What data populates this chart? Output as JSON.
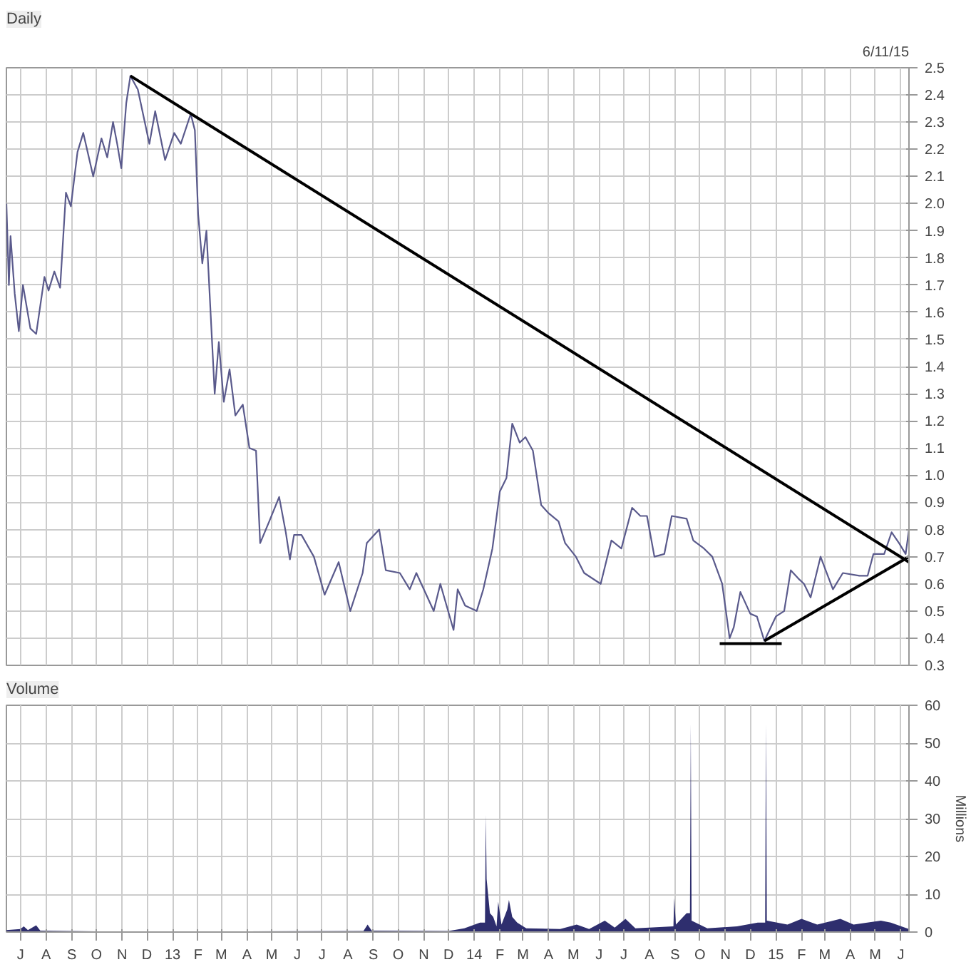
{
  "chart_data": [
    {
      "type": "line",
      "title": "Daily",
      "annotations": [
        "6/11/15"
      ],
      "grid": true,
      "tick_labels": "y",
      "xlim": [
        "2012-06-14",
        "2015-06-11"
      ],
      "xticks": [
        {
          "value": "2012-07-01",
          "label": null
        },
        {
          "value": "2012-08-01",
          "label": null
        },
        {
          "value": "2012-09-01",
          "label": null
        },
        {
          "value": "2012-10-01",
          "label": null
        },
        {
          "value": "2012-11-01",
          "label": null
        },
        {
          "value": "2012-12-01",
          "label": null
        },
        {
          "value": "2013-01-01",
          "label": null
        },
        {
          "value": "2013-02-01",
          "label": null
        },
        {
          "value": "2013-03-01",
          "label": null
        },
        {
          "value": "2013-04-01",
          "label": null
        },
        {
          "value": "2013-05-01",
          "label": null
        },
        {
          "value": "2013-06-01",
          "label": null
        },
        {
          "value": "2013-07-01",
          "label": null
        },
        {
          "value": "2013-08-01",
          "label": null
        },
        {
          "value": "2013-09-01",
          "label": null
        },
        {
          "value": "2013-10-01",
          "label": null
        },
        {
          "value": "2013-11-01",
          "label": null
        },
        {
          "value": "2013-12-01",
          "label": null
        },
        {
          "value": "2014-01-01",
          "label": null
        },
        {
          "value": "2014-02-01",
          "label": null
        },
        {
          "value": "2014-03-01",
          "label": null
        },
        {
          "value": "2014-04-01",
          "label": null
        },
        {
          "value": "2014-05-01",
          "label": null
        },
        {
          "value": "2014-06-01",
          "label": null
        },
        {
          "value": "2014-07-01",
          "label": null
        },
        {
          "value": "2014-08-01",
          "label": null
        },
        {
          "value": "2014-09-01",
          "label": null
        },
        {
          "value": "2014-10-01",
          "label": null
        },
        {
          "value": "2014-11-01",
          "label": null
        },
        {
          "value": "2014-12-01",
          "label": null
        },
        {
          "value": "2015-01-01",
          "label": null
        },
        {
          "value": "2015-02-01",
          "label": null
        },
        {
          "value": "2015-03-01",
          "label": null
        },
        {
          "value": "2015-04-01",
          "label": null
        },
        {
          "value": "2015-05-01",
          "label": null
        },
        {
          "value": "2015-06-01",
          "label": null
        }
      ],
      "ylim": [
        0.3,
        2.5
      ],
      "yticks": [
        {
          "value": 0.3,
          "label": "0.3"
        },
        {
          "value": 0.4,
          "label": "0.4"
        },
        {
          "value": 0.5,
          "label": "0.5"
        },
        {
          "value": 0.6,
          "label": "0.6"
        },
        {
          "value": 0.7,
          "label": "0.7"
        },
        {
          "value": 0.8,
          "label": "0.8"
        },
        {
          "value": 0.9,
          "label": "0.9"
        },
        {
          "value": 1.0,
          "label": "1.0"
        },
        {
          "value": 1.1,
          "label": "1.1"
        },
        {
          "value": 1.2,
          "label": "1.2"
        },
        {
          "value": 1.3,
          "label": "1.3"
        },
        {
          "value": 1.4,
          "label": "1.4"
        },
        {
          "value": 1.5,
          "label": "1.5"
        },
        {
          "value": 1.6,
          "label": "1.6"
        },
        {
          "value": 1.7,
          "label": "1.7"
        },
        {
          "value": 1.8,
          "label": "1.8"
        },
        {
          "value": 1.9,
          "label": "1.9"
        },
        {
          "value": 2.0,
          "label": "2.0"
        },
        {
          "value": 2.1,
          "label": "2.1"
        },
        {
          "value": 2.2,
          "label": "2.2"
        },
        {
          "value": 2.3,
          "label": "2.3"
        },
        {
          "value": 2.4,
          "label": "2.4"
        },
        {
          "value": 2.5,
          "label": "2.5"
        }
      ],
      "series": [
        {
          "color": "#5a5a8c",
          "x": [
            "2012-06-14",
            "2012-06-17",
            "2012-06-19",
            "2012-06-24",
            "2012-06-29",
            "2012-07-04",
            "2012-07-13",
            "2012-07-20",
            "2012-07-30",
            "2012-08-04",
            "2012-08-11",
            "2012-08-18",
            "2012-08-25",
            "2012-08-31",
            "2012-09-08",
            "2012-09-15",
            "2012-09-27",
            "2012-10-07",
            "2012-10-14",
            "2012-10-21",
            "2012-10-26",
            "2012-10-31",
            "2012-11-06",
            "2012-11-11",
            "2012-11-20",
            "2012-12-04",
            "2012-12-11",
            "2012-12-23",
            "2013-01-03",
            "2013-01-11",
            "2013-01-23",
            "2013-01-28",
            "2013-02-01",
            "2013-02-06",
            "2013-02-11",
            "2013-02-21",
            "2013-02-26",
            "2013-03-04",
            "2013-03-11",
            "2013-03-18",
            "2013-03-27",
            "2013-04-04",
            "2013-04-12",
            "2013-04-17",
            "2013-04-28",
            "2013-05-10",
            "2013-05-18",
            "2013-05-23",
            "2013-05-28",
            "2013-06-06",
            "2013-06-21",
            "2013-07-04",
            "2013-07-21",
            "2013-08-04",
            "2013-08-19",
            "2013-08-24",
            "2013-09-08",
            "2013-09-16",
            "2013-10-03",
            "2013-10-15",
            "2013-10-23",
            "2013-11-13",
            "2013-11-21",
            "2013-12-07",
            "2013-12-12",
            "2013-12-21",
            "2014-01-04",
            "2014-01-12",
            "2014-01-23",
            "2014-02-01",
            "2014-02-09",
            "2014-02-16",
            "2014-02-25",
            "2014-03-04",
            "2014-03-13",
            "2014-03-23",
            "2014-04-01",
            "2014-04-13",
            "2014-04-21",
            "2014-05-04",
            "2014-05-14",
            "2014-06-03",
            "2014-06-16",
            "2014-06-28",
            "2014-07-11",
            "2014-07-21",
            "2014-07-29",
            "2014-08-07",
            "2014-08-19",
            "2014-08-28",
            "2014-09-15",
            "2014-09-23",
            "2014-10-06",
            "2014-10-16",
            "2014-10-28",
            "2014-11-06",
            "2014-11-11",
            "2014-11-19",
            "2014-12-01",
            "2014-12-09",
            "2014-12-18",
            "2015-01-01",
            "2015-01-11",
            "2015-01-19",
            "2015-01-28",
            "2015-02-04",
            "2015-02-12",
            "2015-02-24",
            "2015-03-11",
            "2015-03-23",
            "2015-04-12",
            "2015-04-22",
            "2015-04-29",
            "2015-05-12",
            "2015-05-21",
            "2015-05-30",
            "2015-06-07",
            "2015-06-11"
          ],
          "values": [
            2.0,
            1.7,
            1.88,
            1.67,
            1.53,
            1.7,
            1.54,
            1.52,
            1.73,
            1.68,
            1.75,
            1.69,
            2.04,
            1.99,
            2.19,
            2.26,
            2.1,
            2.24,
            2.17,
            2.3,
            2.22,
            2.13,
            2.37,
            2.47,
            2.42,
            2.22,
            2.34,
            2.16,
            2.26,
            2.22,
            2.33,
            2.27,
            1.96,
            1.78,
            1.9,
            1.3,
            1.49,
            1.27,
            1.39,
            1.22,
            1.26,
            1.1,
            1.09,
            0.75,
            0.83,
            0.92,
            0.79,
            0.69,
            0.78,
            0.78,
            0.7,
            0.56,
            0.68,
            0.5,
            0.64,
            0.75,
            0.8,
            0.65,
            0.64,
            0.58,
            0.64,
            0.5,
            0.6,
            0.43,
            0.58,
            0.52,
            0.5,
            0.58,
            0.73,
            0.94,
            0.99,
            1.19,
            1.12,
            1.14,
            1.09,
            0.89,
            0.86,
            0.83,
            0.75,
            0.7,
            0.64,
            0.6,
            0.76,
            0.73,
            0.88,
            0.85,
            0.85,
            0.7,
            0.71,
            0.85,
            0.84,
            0.76,
            0.73,
            0.7,
            0.6,
            0.4,
            0.44,
            0.57,
            0.49,
            0.48,
            0.39,
            0.48,
            0.5,
            0.65,
            0.62,
            0.6,
            0.55,
            0.7,
            0.58,
            0.64,
            0.63,
            0.63,
            0.71,
            0.71,
            0.79,
            0.75,
            0.71,
            0.8
          ]
        },
        {
          "color": "#000000",
          "x": [
            "2012-11-11",
            "2015-06-11"
          ],
          "values": [
            2.47,
            0.68
          ]
        },
        {
          "color": "#000000",
          "x": [
            "2014-12-18",
            "2015-06-11"
          ],
          "values": [
            0.39,
            0.7
          ]
        },
        {
          "color": "#000000",
          "x": [
            "2014-10-25",
            "2015-01-08"
          ],
          "values": [
            0.38,
            0.38
          ]
        }
      ]
    },
    {
      "type": "area",
      "title": "Volume",
      "ylabel": "Millions",
      "grid": true,
      "xlim": [
        "2012-06-14",
        "2015-06-11"
      ],
      "xticks": [
        {
          "value": "2012-07-01",
          "label": "J"
        },
        {
          "value": "2012-08-01",
          "label": "A"
        },
        {
          "value": "2012-09-01",
          "label": "S"
        },
        {
          "value": "2012-10-01",
          "label": "O"
        },
        {
          "value": "2012-11-01",
          "label": "N"
        },
        {
          "value": "2012-12-01",
          "label": "D"
        },
        {
          "value": "2013-01-01",
          "label": "13"
        },
        {
          "value": "2013-02-01",
          "label": "F"
        },
        {
          "value": "2013-03-01",
          "label": "M"
        },
        {
          "value": "2013-04-01",
          "label": "A"
        },
        {
          "value": "2013-05-01",
          "label": "M"
        },
        {
          "value": "2013-06-01",
          "label": "J"
        },
        {
          "value": "2013-07-01",
          "label": "J"
        },
        {
          "value": "2013-08-01",
          "label": "A"
        },
        {
          "value": "2013-09-01",
          "label": "S"
        },
        {
          "value": "2013-10-01",
          "label": "O"
        },
        {
          "value": "2013-11-01",
          "label": "N"
        },
        {
          "value": "2013-12-01",
          "label": "D"
        },
        {
          "value": "2014-01-01",
          "label": "14"
        },
        {
          "value": "2014-02-01",
          "label": "F"
        },
        {
          "value": "2014-03-01",
          "label": "M"
        },
        {
          "value": "2014-04-01",
          "label": "A"
        },
        {
          "value": "2014-05-01",
          "label": "M"
        },
        {
          "value": "2014-06-01",
          "label": "J"
        },
        {
          "value": "2014-07-01",
          "label": "J"
        },
        {
          "value": "2014-08-01",
          "label": "A"
        },
        {
          "value": "2014-09-01",
          "label": "S"
        },
        {
          "value": "2014-10-01",
          "label": "O"
        },
        {
          "value": "2014-11-01",
          "label": "N"
        },
        {
          "value": "2014-12-01",
          "label": "D"
        },
        {
          "value": "2015-01-01",
          "label": "15"
        },
        {
          "value": "2015-02-01",
          "label": "F"
        },
        {
          "value": "2015-03-01",
          "label": "M"
        },
        {
          "value": "2015-04-01",
          "label": "A"
        },
        {
          "value": "2015-05-01",
          "label": "M"
        },
        {
          "value": "2015-06-01",
          "label": "J"
        }
      ],
      "ylim": [
        0,
        60
      ],
      "yticks": [
        0,
        10,
        20,
        30,
        40,
        50,
        60
      ],
      "series": [
        {
          "color": "#2e2e6e",
          "x": [
            "2012-06-14",
            "2012-07-01",
            "2012-07-05",
            "2012-07-10",
            "2012-07-20",
            "2012-07-25",
            "2012-10-01",
            "2013-04-01",
            "2013-08-20",
            "2013-08-25",
            "2013-08-30",
            "2013-12-01",
            "2013-12-20",
            "2014-01-08",
            "2014-01-14",
            "2014-01-15",
            "2014-01-16",
            "2014-01-20",
            "2014-01-24",
            "2014-01-28",
            "2014-01-30",
            "2014-02-03",
            "2014-02-10",
            "2014-02-12",
            "2014-02-16",
            "2014-02-22",
            "2014-03-05",
            "2014-04-15",
            "2014-05-05",
            "2014-05-20",
            "2014-06-08",
            "2014-06-20",
            "2014-07-03",
            "2014-07-15",
            "2014-08-30",
            "2014-08-31",
            "2014-09-02",
            "2014-09-15",
            "2014-09-19",
            "2014-09-20",
            "2014-09-21",
            "2014-10-10",
            "2014-11-15",
            "2014-12-10",
            "2014-12-19",
            "2014-12-20",
            "2014-12-21",
            "2015-01-15",
            "2015-02-01",
            "2015-02-20",
            "2015-03-20",
            "2015-04-05",
            "2015-05-08",
            "2015-05-20",
            "2015-06-11"
          ],
          "values": [
            0.5,
            0.8,
            1.5,
            0.5,
            1.8,
            0.4,
            0.2,
            0.2,
            0.3,
            2.0,
            0.4,
            0.3,
            1.0,
            2.5,
            2.5,
            31,
            14,
            5,
            4,
            1.5,
            8,
            2,
            6,
            8.5,
            4,
            2.5,
            1.0,
            0.8,
            2.0,
            0.8,
            3.0,
            1.2,
            3.5,
            1.0,
            1.5,
            9,
            2,
            5,
            5,
            55,
            3,
            1.0,
            1.5,
            2.5,
            2.5,
            55,
            3,
            2,
            3.5,
            2,
            3.5,
            2,
            3,
            2.5,
            0.8
          ]
        }
      ]
    }
  ]
}
